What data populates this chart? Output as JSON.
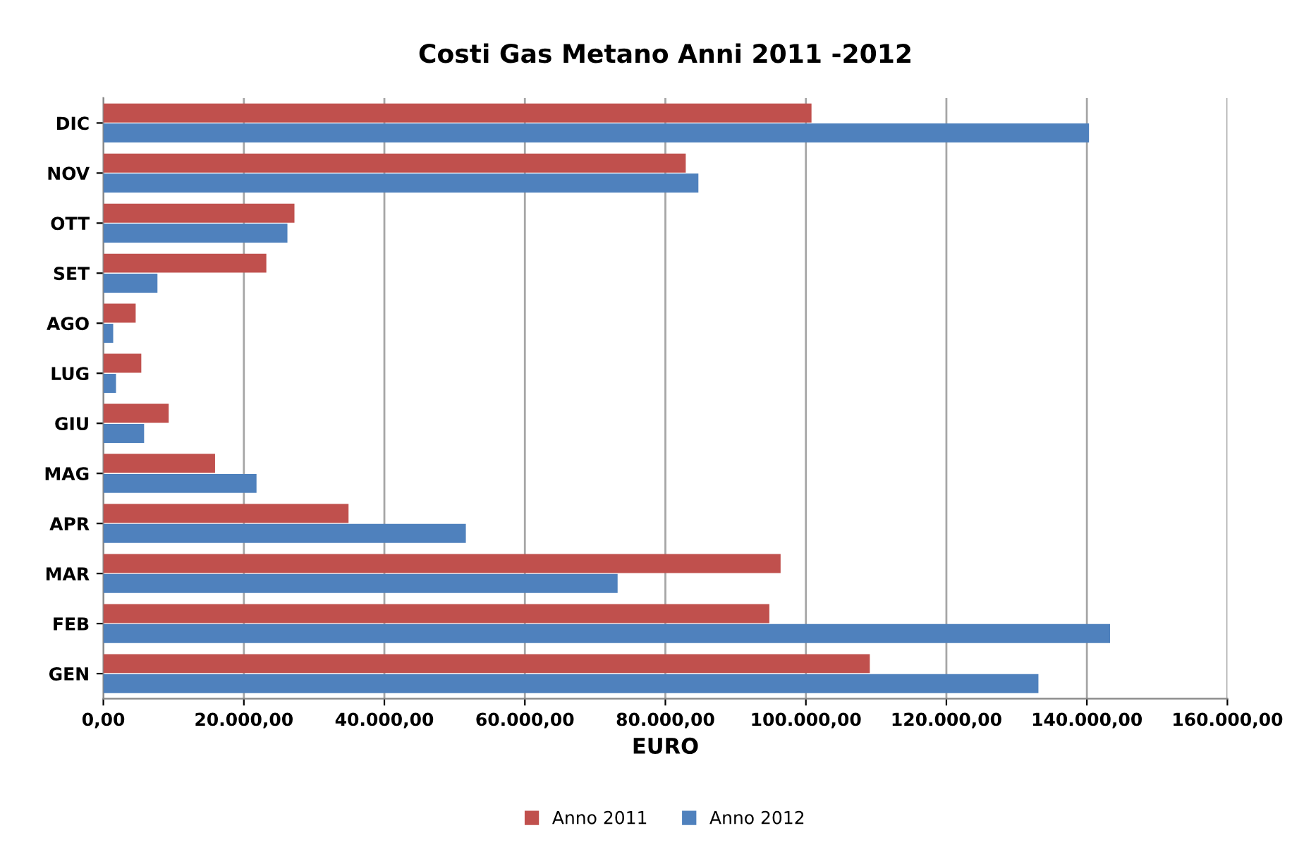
{
  "chart_data": {
    "type": "bar",
    "orientation": "horizontal",
    "title": "Costi Gas Metano Anni 2011 -2012",
    "xlabel": "EURO",
    "categories": [
      "DIC",
      "NOV",
      "OTT",
      "SET",
      "AGO",
      "LUG",
      "GIU",
      "MAG",
      "APR",
      "MAR",
      "FEB",
      "GEN"
    ],
    "series": [
      {
        "name": "Anno 2011",
        "color": "#c0504d",
        "values": [
          100800,
          82900,
          27200,
          23200,
          4600,
          5400,
          9300,
          15900,
          34900,
          96400,
          94800,
          109100
        ]
      },
      {
        "name": "Anno 2012",
        "color": "#4f81bd",
        "values": [
          140300,
          84700,
          26200,
          7700,
          1400,
          1800,
          5800,
          21800,
          51600,
          73200,
          143300,
          133100
        ]
      }
    ],
    "xlim": [
      0,
      160000
    ],
    "xticks": [
      {
        "value": 0,
        "label": "0,00"
      },
      {
        "value": 20000,
        "label": "20.000,00"
      },
      {
        "value": 40000,
        "label": "40.000,00"
      },
      {
        "value": 60000,
        "label": "60.000,00"
      },
      {
        "value": 80000,
        "label": "80.000,00"
      },
      {
        "value": 100000,
        "label": "100.000,00"
      },
      {
        "value": 120000,
        "label": "120.000,00"
      },
      {
        "value": 140000,
        "label": "140.000,00"
      },
      {
        "value": 160000,
        "label": "160.000,00"
      }
    ],
    "grid": "x",
    "legend": "bottom"
  }
}
